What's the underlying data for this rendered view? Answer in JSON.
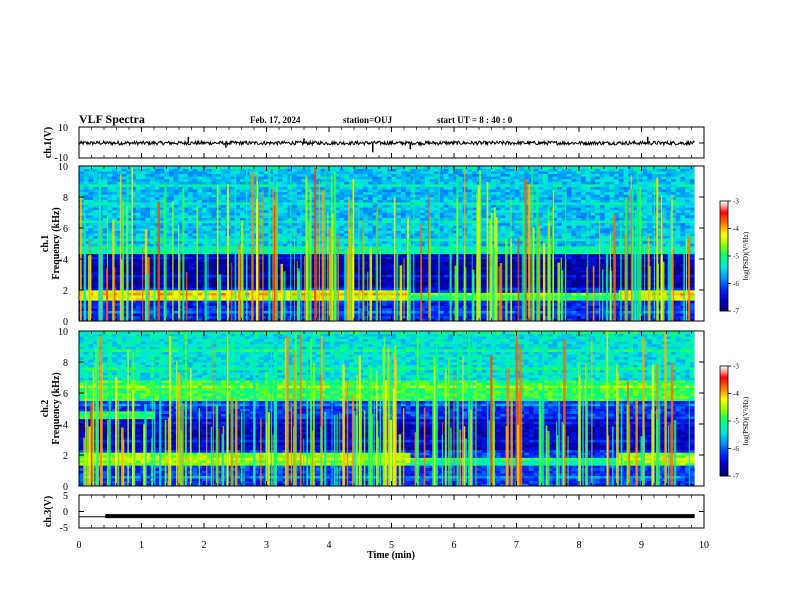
{
  "header": {
    "title": "VLF Spectra",
    "date": "Feb. 17, 2024",
    "station": "station=OUJ",
    "start": "start  UT =   8 : 40 : 0"
  },
  "chart_data": [
    {
      "type": "line",
      "name": "waveform-ch1",
      "ylabel": "ch.1(V)",
      "ylim": [
        -10,
        10
      ],
      "yticks": [
        10,
        -10
      ],
      "x_range": [
        0,
        9.85
      ],
      "level": 0,
      "noise_amplitude": 1.2,
      "spikes": [
        {
          "x": 1.75,
          "y": 4
        },
        {
          "x": 2.35,
          "y": -3
        },
        {
          "x": 3.6,
          "y": 3
        },
        {
          "x": 4.7,
          "y": -6
        },
        {
          "x": 5.3,
          "y": -4
        },
        {
          "x": 9.1,
          "y": 4
        }
      ]
    },
    {
      "type": "heatmap",
      "name": "spectrogram-ch1",
      "ylabel": "ch.1\nFrequency  (kHz)",
      "xlim": [
        0,
        10
      ],
      "ylim": [
        0,
        10
      ],
      "yticks": [
        0,
        2,
        4,
        6,
        8,
        10
      ],
      "data_extent_x": [
        0,
        9.85
      ],
      "colorbar": {
        "label": "log(PSD)(V²/Hz)",
        "ticks": [
          -3,
          -4,
          -5,
          -6,
          -7
        ],
        "range": [
          -7,
          -3
        ],
        "colors": [
          "#00008b",
          "#0000ff",
          "#00c0ff",
          "#00ff80",
          "#a0ff00",
          "#ffff00",
          "#ff8000",
          "#ff0000",
          "#ffc0c0",
          "#ffffff"
        ]
      },
      "features": {
        "background_logpsd": -6.3,
        "bands": [
          {
            "f_low": 1.3,
            "f_high": 2.0,
            "logpsd": -4.3,
            "x_spans": [
              [
                0,
                5.3
              ],
              [
                8.6,
                9.85
              ]
            ]
          },
          {
            "f_low": 1.3,
            "f_high": 1.8,
            "logpsd": -5.0,
            "x_spans": [
              [
                5.3,
                8.6
              ]
            ]
          },
          {
            "f_low": 4.4,
            "f_high": 4.8,
            "logpsd": -5.2,
            "x_spans": [
              [
                0,
                9.85
              ]
            ]
          },
          {
            "f_low": 4.8,
            "f_high": 10.0,
            "logpsd": -5.6,
            "x_spans": [
              [
                0,
                9.85
              ]
            ]
          }
        ],
        "dark_band": {
          "f_low": 2.2,
          "f_high": 4.3,
          "logpsd": -6.7
        },
        "sferics_per_min": 22
      }
    },
    {
      "type": "heatmap",
      "name": "spectrogram-ch2",
      "ylabel": "ch.2\nFrequency  (kHz)",
      "xlim": [
        0,
        10
      ],
      "ylim": [
        0,
        10
      ],
      "yticks": [
        0,
        2,
        4,
        6,
        8,
        10
      ],
      "data_extent_x": [
        0,
        9.85
      ],
      "colorbar": {
        "label": "log(PSD)(V²/Hz)",
        "ticks": [
          -3,
          -4,
          -5,
          -6,
          -7
        ],
        "range": [
          -7,
          -3
        ]
      },
      "features": {
        "background_logpsd": -6.2,
        "bands": [
          {
            "f_low": 1.3,
            "f_high": 2.2,
            "logpsd": -4.6,
            "x_spans": [
              [
                0,
                5.3
              ],
              [
                8.6,
                9.85
              ]
            ]
          },
          {
            "f_low": 1.3,
            "f_high": 1.8,
            "logpsd": -5.2,
            "x_spans": [
              [
                5.3,
                8.6
              ]
            ]
          },
          {
            "f_low": 4.4,
            "f_high": 4.9,
            "logpsd": -5.0,
            "x_spans": [
              [
                0,
                1.2
              ]
            ]
          },
          {
            "f_low": 5.5,
            "f_high": 6.8,
            "logpsd": -4.9,
            "x_spans": [
              [
                0,
                9.85
              ]
            ]
          },
          {
            "f_low": 6.8,
            "f_high": 10.0,
            "logpsd": -5.4,
            "x_spans": [
              [
                0,
                9.85
              ]
            ]
          }
        ],
        "dark_band": {
          "f_low": 2.4,
          "f_high": 4.3,
          "logpsd": -6.6
        },
        "sferics_per_min": 22
      }
    },
    {
      "type": "line",
      "name": "waveform-ch3",
      "ylabel": "ch.3(V)",
      "xlabel": "Time  (min)",
      "ylim": [
        -5,
        5
      ],
      "yticks": [
        5,
        0,
        -5
      ],
      "x_range": [
        0,
        9.85
      ],
      "segments": [
        {
          "x": [
            0,
            0.42
          ],
          "y": -1.6,
          "thickness": "thin"
        },
        {
          "x": [
            0.42,
            9.85
          ],
          "y": -1.4,
          "thickness": "thick"
        }
      ],
      "xticks": [
        0,
        1,
        2,
        3,
        4,
        5,
        6,
        7,
        8,
        9,
        10
      ],
      "xlim": [
        0,
        10
      ]
    }
  ]
}
